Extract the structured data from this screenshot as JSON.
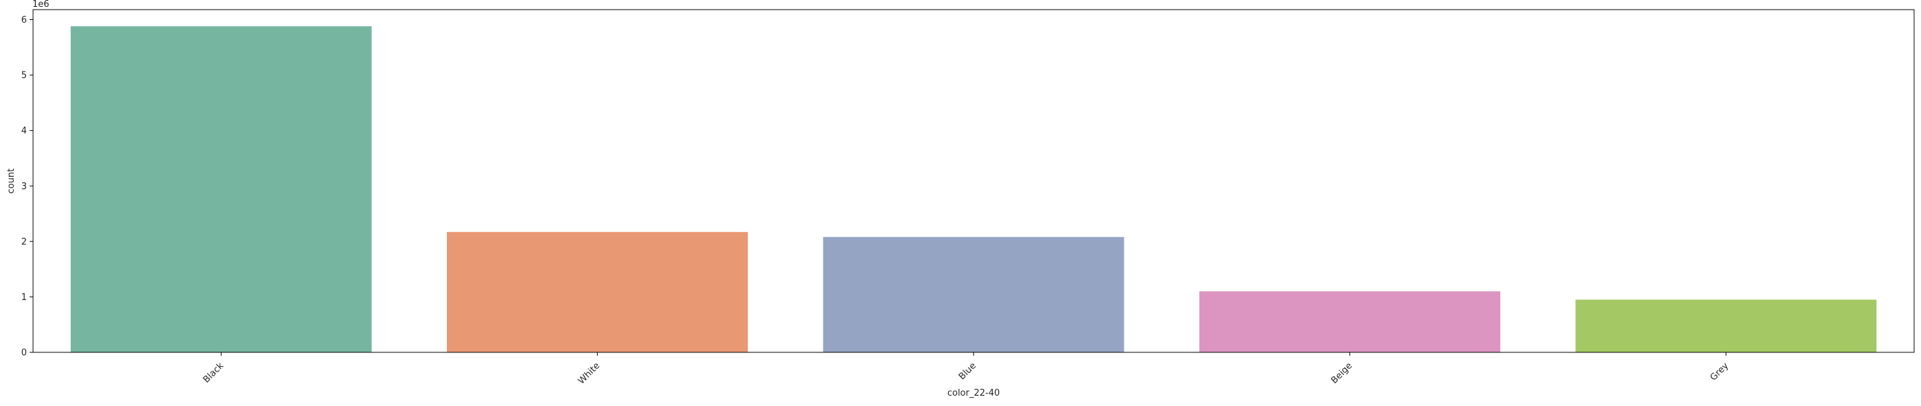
{
  "chart_data": {
    "type": "bar",
    "categories": [
      "Black",
      "White",
      "Blue",
      "Beige",
      "Grey"
    ],
    "values": [
      5880000,
      2170000,
      2080000,
      1100000,
      950000
    ],
    "colors": [
      "#76b6a0",
      "#e99874",
      "#95a4c3",
      "#dc95c0",
      "#a4c864"
    ],
    "title": "",
    "xlabel": "color_22-40",
    "ylabel": "count",
    "y_offset_label": "1e6",
    "ylim": [
      0,
      6180000
    ],
    "yticks": [
      0,
      1000000,
      2000000,
      3000000,
      4000000,
      5000000,
      6000000
    ],
    "ytick_labels": [
      "0",
      "1",
      "2",
      "3",
      "4",
      "5",
      "6"
    ],
    "grid": false,
    "legend": "none"
  }
}
